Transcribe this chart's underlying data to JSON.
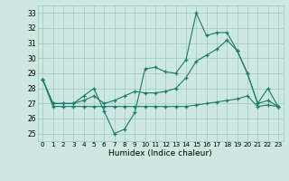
{
  "xlabel": "Humidex (Indice chaleur)",
  "background_color": "#cce8e0",
  "grid_color": "#aaccC4",
  "line_color": "#1a7a6e",
  "x": [
    0,
    1,
    2,
    3,
    4,
    5,
    6,
    7,
    8,
    9,
    10,
    11,
    12,
    13,
    14,
    15,
    16,
    17,
    18,
    19,
    20,
    21,
    22,
    23
  ],
  "line1": [
    28.6,
    27.0,
    27.0,
    27.0,
    27.5,
    28.0,
    26.5,
    25.0,
    25.3,
    26.4,
    29.3,
    29.4,
    29.1,
    29.0,
    29.9,
    33.0,
    31.5,
    31.7,
    31.7,
    30.5,
    29.0,
    27.0,
    28.0,
    26.8
  ],
  "line2": [
    28.6,
    27.0,
    27.0,
    27.0,
    27.2,
    27.5,
    27.0,
    27.2,
    27.5,
    27.8,
    27.7,
    27.7,
    27.8,
    28.0,
    28.7,
    29.8,
    30.2,
    30.6,
    31.2,
    30.5,
    29.0,
    27.0,
    27.2,
    26.8
  ],
  "line3": [
    28.6,
    26.8,
    26.8,
    26.8,
    26.8,
    26.8,
    26.8,
    26.8,
    26.8,
    26.8,
    26.8,
    26.8,
    26.8,
    26.8,
    26.8,
    26.9,
    27.0,
    27.1,
    27.2,
    27.3,
    27.5,
    26.8,
    26.9,
    26.8
  ],
  "ylim": [
    24.5,
    33.5
  ],
  "yticks": [
    25,
    26,
    27,
    28,
    29,
    30,
    31,
    32,
    33
  ],
  "xticks": [
    0,
    1,
    2,
    3,
    4,
    5,
    6,
    7,
    8,
    9,
    10,
    11,
    12,
    13,
    14,
    15,
    16,
    17,
    18,
    19,
    20,
    21,
    22,
    23
  ],
  "xlim": [
    -0.5,
    23.5
  ]
}
